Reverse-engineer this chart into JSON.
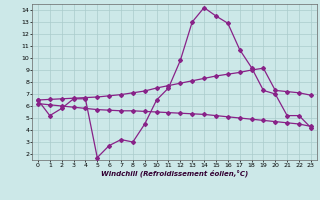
{
  "xlabel": "Windchill (Refroidissement éolien,°C)",
  "background_color": "#cce8e8",
  "grid_color": "#aacccc",
  "line_color": "#882288",
  "xlim": [
    -0.5,
    23.5
  ],
  "ylim": [
    1.5,
    14.5
  ],
  "yticks": [
    2,
    3,
    4,
    5,
    6,
    7,
    8,
    9,
    10,
    11,
    12,
    13,
    14
  ],
  "xticks": [
    0,
    1,
    2,
    3,
    4,
    5,
    6,
    7,
    8,
    9,
    10,
    11,
    12,
    13,
    14,
    15,
    16,
    17,
    18,
    19,
    20,
    21,
    22,
    23
  ],
  "curve1_x": [
    0,
    1,
    2,
    3,
    4,
    5,
    6,
    7,
    8,
    9,
    10,
    11,
    12,
    13,
    14,
    15,
    16,
    17,
    18,
    19,
    20,
    21,
    22,
    23
  ],
  "curve1_y": [
    6.5,
    5.2,
    5.8,
    6.6,
    6.6,
    1.7,
    2.7,
    3.2,
    3.0,
    4.5,
    6.5,
    7.5,
    9.8,
    13.0,
    14.2,
    13.5,
    12.9,
    10.7,
    9.2,
    7.3,
    7.0,
    5.2,
    5.2,
    4.2
  ],
  "curve2_x": [
    0,
    1,
    2,
    3,
    4,
    5,
    6,
    7,
    8,
    9,
    10,
    11,
    12,
    13,
    14,
    15,
    16,
    17,
    18,
    19,
    20,
    21,
    22,
    23
  ],
  "curve2_y": [
    6.5,
    6.55,
    6.6,
    6.65,
    6.7,
    6.75,
    6.85,
    6.95,
    7.1,
    7.25,
    7.5,
    7.7,
    7.9,
    8.1,
    8.3,
    8.5,
    8.65,
    8.8,
    9.0,
    9.15,
    7.3,
    7.2,
    7.1,
    6.9
  ],
  "curve3_x": [
    0,
    1,
    2,
    3,
    4,
    5,
    6,
    7,
    8,
    9,
    10,
    11,
    12,
    13,
    14,
    15,
    16,
    17,
    18,
    19,
    20,
    21,
    22,
    23
  ],
  "curve3_y": [
    6.2,
    6.1,
    6.0,
    5.9,
    5.8,
    5.7,
    5.65,
    5.6,
    5.6,
    5.55,
    5.5,
    5.45,
    5.4,
    5.35,
    5.3,
    5.2,
    5.1,
    5.0,
    4.9,
    4.8,
    4.7,
    4.6,
    4.5,
    4.3
  ]
}
